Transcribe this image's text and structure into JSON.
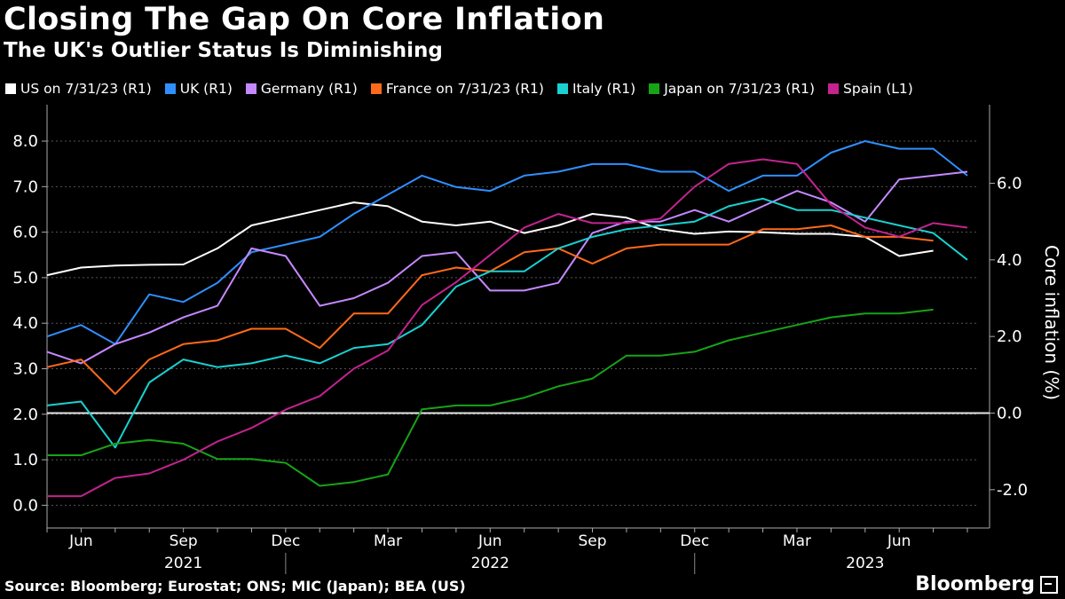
{
  "header": {
    "title": "Closing The Gap On Core Inflation",
    "subtitle": "The UK's Outlier Status Is Diminishing"
  },
  "footer": {
    "source": "Source: Bloomberg; Eurostat; ONS; MIC (Japan); BEA (US)",
    "brand": "Bloomberg"
  },
  "chart_data": {
    "type": "line",
    "title": "Closing The Gap On Core Inflation",
    "subtitle": "The UK's Outlier Status Is Diminishing",
    "x": [
      "2021-05",
      "2021-06",
      "2021-07",
      "2021-08",
      "2021-09",
      "2021-10",
      "2021-11",
      "2021-12",
      "2022-01",
      "2022-02",
      "2022-03",
      "2022-04",
      "2022-05",
      "2022-06",
      "2022-07",
      "2022-08",
      "2022-09",
      "2022-10",
      "2022-11",
      "2022-12",
      "2023-01",
      "2023-02",
      "2023-03",
      "2023-04",
      "2023-05",
      "2023-06",
      "2023-07",
      "2023-08"
    ],
    "x_tick_labels": [
      {
        "x": "2021-06",
        "label": "Jun"
      },
      {
        "x": "2021-09",
        "label": "Sep"
      },
      {
        "x": "2021-12",
        "label": "Dec"
      },
      {
        "x": "2022-03",
        "label": "Mar"
      },
      {
        "x": "2022-06",
        "label": "Jun"
      },
      {
        "x": "2022-09",
        "label": "Sep"
      },
      {
        "x": "2022-12",
        "label": "Dec"
      },
      {
        "x": "2023-03",
        "label": "Mar"
      },
      {
        "x": "2023-06",
        "label": "Jun"
      }
    ],
    "year_labels": [
      {
        "x": "2021-09",
        "label": "2021"
      },
      {
        "x": "2022-06",
        "label": "2022"
      },
      {
        "x": "2023-05",
        "label": "2023"
      }
    ],
    "year_separators": [
      "2021-12",
      "2022-12"
    ],
    "left_axis": {
      "ticks": [
        0.0,
        1.0,
        2.0,
        3.0,
        4.0,
        5.0,
        6.0,
        7.0,
        8.0
      ],
      "tick_labels": [
        "0.0",
        "1.0",
        "2.0",
        "3.0",
        "4.0",
        "5.0",
        "6.0",
        "7.0",
        "8.0"
      ],
      "range": [
        -0.5,
        8.8
      ]
    },
    "right_axis": {
      "ticks": [
        -2.0,
        0.0,
        2.0,
        4.0,
        6.0
      ],
      "tick_labels": [
        "-2.0",
        "0.0",
        "2.0",
        "4.0",
        "6.0"
      ],
      "range": [
        -3.0,
        8.05
      ],
      "label": "Core inflation (%)"
    },
    "zero_line_right": 0.0,
    "series": [
      {
        "name": "US on 7/31/23 (R1)",
        "axis": "right",
        "color": "#ffffff",
        "values": [
          3.6,
          3.8,
          3.85,
          3.87,
          3.88,
          4.3,
          4.9,
          5.1,
          5.3,
          5.5,
          5.4,
          5.0,
          4.9,
          5.0,
          4.7,
          4.9,
          5.2,
          5.1,
          4.8,
          4.68,
          4.74,
          4.72,
          4.68,
          4.68,
          4.6,
          4.1,
          4.24,
          null
        ]
      },
      {
        "name": "UK (R1)",
        "axis": "right",
        "color": "#2f8fff",
        "values": [
          2.0,
          2.3,
          1.8,
          3.1,
          2.9,
          3.4,
          4.2,
          4.4,
          4.6,
          5.2,
          5.7,
          6.2,
          5.9,
          5.8,
          6.2,
          6.3,
          6.5,
          6.5,
          6.3,
          6.3,
          5.8,
          6.2,
          6.2,
          6.8,
          7.1,
          6.9,
          6.9,
          6.2
        ]
      },
      {
        "name": "Germany (R1)",
        "axis": "right",
        "color": "#c589ff",
        "values": [
          1.6,
          1.3,
          1.8,
          2.1,
          2.5,
          2.8,
          4.3,
          4.1,
          2.8,
          3.0,
          3.4,
          4.1,
          4.2,
          3.2,
          3.2,
          3.4,
          4.7,
          5.0,
          5.0,
          5.3,
          5.0,
          5.4,
          5.8,
          5.5,
          5.0,
          6.1,
          6.2,
          6.3
        ]
      },
      {
        "name": "France on 7/31/23 (R1)",
        "axis": "right",
        "color": "#ff6a1a",
        "values": [
          1.2,
          1.4,
          0.5,
          1.4,
          1.8,
          1.9,
          2.2,
          2.2,
          1.7,
          2.6,
          2.6,
          3.6,
          3.8,
          3.7,
          4.2,
          4.3,
          3.9,
          4.3,
          4.4,
          4.4,
          4.4,
          4.8,
          4.8,
          4.9,
          4.6,
          4.6,
          4.5,
          null
        ]
      },
      {
        "name": "Italy (R1)",
        "axis": "right",
        "color": "#1ad1d1",
        "values": [
          0.2,
          0.3,
          -0.9,
          0.8,
          1.4,
          1.2,
          1.3,
          1.5,
          1.3,
          1.7,
          1.8,
          2.3,
          3.3,
          3.7,
          3.7,
          4.3,
          4.6,
          4.8,
          4.9,
          5.0,
          5.4,
          5.6,
          5.3,
          5.3,
          5.1,
          4.9,
          4.7,
          4.0
        ]
      },
      {
        "name": "Japan on 7/31/23 (R1)",
        "axis": "right",
        "color": "#17a317",
        "values": [
          -1.1,
          -1.1,
          -0.8,
          -0.7,
          -0.8,
          -1.2,
          -1.2,
          -1.3,
          -1.9,
          -1.8,
          -1.6,
          0.1,
          0.2,
          0.2,
          0.4,
          0.7,
          0.9,
          1.5,
          1.5,
          1.6,
          1.9,
          2.1,
          2.3,
          2.5,
          2.6,
          2.6,
          2.7,
          null
        ]
      },
      {
        "name": "Spain (L1)",
        "axis": "left",
        "color": "#c42390",
        "values": [
          0.2,
          0.2,
          0.6,
          0.7,
          1.0,
          1.4,
          1.7,
          2.1,
          2.4,
          3.0,
          3.4,
          4.4,
          4.9,
          5.5,
          6.1,
          6.4,
          6.2,
          6.2,
          6.3,
          7.0,
          7.5,
          7.6,
          7.5,
          6.6,
          6.1,
          5.9,
          6.2,
          6.1
        ]
      }
    ]
  }
}
